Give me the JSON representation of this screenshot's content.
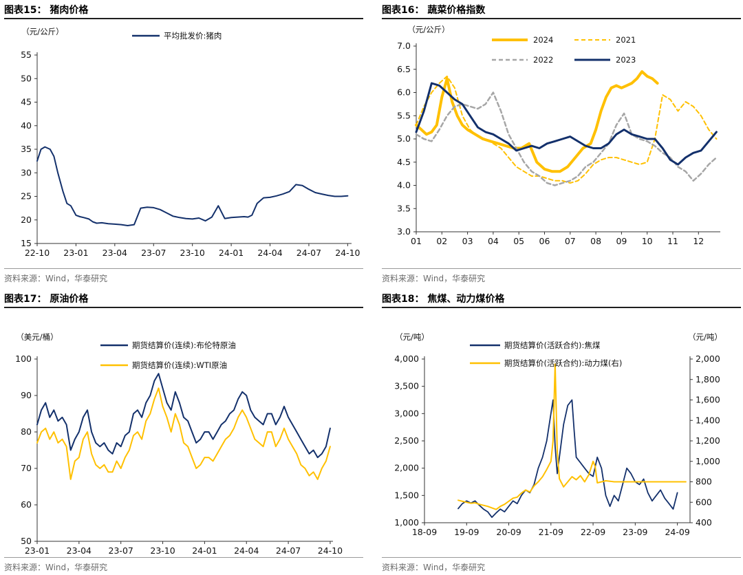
{
  "source_text": "资料来源：Wind，华泰研究",
  "colors": {
    "navy": "#13306b",
    "gold": "#ffc000",
    "gray": "#a6a6a6"
  },
  "chart_data": [
    {
      "id": "fig15",
      "panel_title": "图表15：  猪肉价格",
      "type": "line",
      "unit_left": "（元/公斤）",
      "ylim": [
        15,
        55
      ],
      "yticks": [
        "15",
        "20",
        "25",
        "30",
        "35",
        "40",
        "45",
        "50",
        "55"
      ],
      "xticks": [
        "22-10",
        "23-01",
        "23-04",
        "23-07",
        "23-10",
        "24-01",
        "24-04",
        "24-07",
        "24-10"
      ],
      "xrange": [
        0,
        24.3
      ],
      "series": [
        {
          "name": "平均批发价:猪肉",
          "color": "navy",
          "width": 2,
          "x": [
            0,
            0.3,
            0.6,
            1,
            1.3,
            1.6,
            2,
            2.3,
            2.6,
            3,
            3.3,
            3.6,
            4,
            4.3,
            4.6,
            5,
            5.5,
            6,
            6.5,
            7,
            7.5,
            8,
            8.5,
            9,
            9.5,
            10,
            10.5,
            11,
            11.5,
            12,
            12.5,
            13,
            13.5,
            14,
            14.5,
            15,
            15.5,
            16,
            16.3,
            16.6,
            17,
            17.5,
            18,
            18.5,
            19,
            19.5,
            20,
            20.5,
            21,
            21.5,
            22,
            22.5,
            23,
            23.5,
            24
          ],
          "y": [
            32.5,
            35,
            35.5,
            35,
            33.5,
            30,
            26,
            23.5,
            23,
            21,
            20.7,
            20.5,
            20.2,
            19.6,
            19.3,
            19.4,
            19.2,
            19.1,
            19,
            18.8,
            19,
            22.5,
            22.7,
            22.6,
            22.2,
            21.5,
            20.8,
            20.5,
            20.3,
            20.2,
            20.4,
            19.8,
            20.6,
            23,
            20.3,
            20.5,
            20.6,
            20.7,
            20.6,
            21,
            23.5,
            24.7,
            24.8,
            25.1,
            25.5,
            26,
            27.5,
            27.3,
            26.5,
            25.8,
            25.5,
            25.2,
            25,
            25,
            25.1
          ]
        }
      ]
    },
    {
      "id": "fig16",
      "panel_title": "图表16：  蔬菜价格指数",
      "type": "line",
      "unit_left": "（元/公斤）",
      "ylim": [
        3.0,
        7.0
      ],
      "yticks": [
        "3.0",
        "3.5",
        "4.0",
        "4.5",
        "5.0",
        "5.5",
        "6.0",
        "6.5",
        "7.0"
      ],
      "xticks": [
        "01",
        "02",
        "03",
        "04",
        "05",
        "06",
        "07",
        "08",
        "09",
        "10",
        "11",
        "12"
      ],
      "xrange": [
        1,
        12.85
      ],
      "series": [
        {
          "name": "2024",
          "color": "gold",
          "width": 4,
          "dash": "",
          "x": [
            1,
            1.2,
            1.4,
            1.6,
            1.8,
            2,
            2.2,
            2.4,
            2.6,
            2.8,
            3,
            3.3,
            3.6,
            3.9,
            4.2,
            4.5,
            4.8,
            5.1,
            5.4,
            5.7,
            6,
            6.3,
            6.6,
            6.9,
            7.2,
            7.5,
            7.8,
            8,
            8.2,
            8.4,
            8.6,
            8.8,
            9,
            9.2,
            9.4,
            9.6,
            9.8,
            10,
            10.2,
            10.4
          ],
          "y": [
            5.3,
            5.2,
            5.1,
            5.15,
            5.3,
            5.9,
            6.3,
            5.8,
            5.5,
            5.3,
            5.2,
            5.1,
            5.0,
            4.95,
            4.9,
            4.85,
            4.8,
            4.8,
            4.9,
            4.5,
            4.35,
            4.3,
            4.3,
            4.4,
            4.6,
            4.8,
            4.9,
            5.2,
            5.6,
            5.9,
            6.1,
            6.15,
            6.1,
            6.15,
            6.2,
            6.3,
            6.45,
            6.35,
            6.3,
            6.2
          ]
        },
        {
          "name": "2021",
          "color": "gold",
          "width": 2,
          "dash": "6 4",
          "x": [
            1,
            1.3,
            1.6,
            1.9,
            2.2,
            2.5,
            2.8,
            3.1,
            3.4,
            3.7,
            4,
            4.3,
            4.6,
            4.9,
            5.2,
            5.5,
            5.8,
            6.1,
            6.4,
            6.7,
            7,
            7.3,
            7.6,
            7.9,
            8.2,
            8.5,
            8.8,
            9.1,
            9.4,
            9.7,
            10,
            10.3,
            10.6,
            10.9,
            11.2,
            11.5,
            11.8,
            12.1,
            12.4,
            12.7
          ],
          "y": [
            5.3,
            5.7,
            6.0,
            6.2,
            6.35,
            6.1,
            5.5,
            5.2,
            5.05,
            5.0,
            4.9,
            4.8,
            4.6,
            4.4,
            4.3,
            4.2,
            4.2,
            4.15,
            4.1,
            4.1,
            4.05,
            4.1,
            4.25,
            4.45,
            4.55,
            4.6,
            4.6,
            4.55,
            4.5,
            4.45,
            4.5,
            5.0,
            5.95,
            5.85,
            5.6,
            5.8,
            5.7,
            5.5,
            5.2,
            5.0
          ]
        },
        {
          "name": "2022",
          "color": "gray",
          "width": 2.5,
          "dash": "6 4",
          "x": [
            1,
            1.3,
            1.6,
            1.9,
            2.2,
            2.5,
            2.8,
            3.1,
            3.4,
            3.7,
            4,
            4.3,
            4.6,
            4.9,
            5.2,
            5.5,
            5.8,
            6.1,
            6.4,
            6.7,
            7,
            7.3,
            7.6,
            7.9,
            8.2,
            8.5,
            8.8,
            9.1,
            9.4,
            9.7,
            10,
            10.3,
            10.6,
            10.9,
            11.2,
            11.5,
            11.8,
            12.1,
            12.4,
            12.7
          ],
          "y": [
            5.1,
            5.0,
            4.95,
            5.2,
            5.5,
            5.7,
            5.75,
            5.7,
            5.65,
            5.75,
            6.0,
            5.6,
            5.1,
            4.8,
            4.5,
            4.3,
            4.2,
            4.05,
            4.0,
            4.05,
            4.1,
            4.2,
            4.4,
            4.5,
            4.7,
            4.9,
            5.3,
            5.55,
            5.1,
            5.0,
            4.95,
            4.85,
            4.7,
            4.6,
            4.4,
            4.3,
            4.1,
            4.25,
            4.45,
            4.6
          ]
        },
        {
          "name": "2023",
          "color": "navy",
          "width": 3,
          "dash": "",
          "x": [
            1,
            1.3,
            1.6,
            1.9,
            2.2,
            2.5,
            2.8,
            3.1,
            3.4,
            3.7,
            4,
            4.3,
            4.6,
            4.9,
            5.2,
            5.5,
            5.8,
            6.1,
            6.4,
            6.7,
            7,
            7.3,
            7.6,
            7.9,
            8.2,
            8.5,
            8.8,
            9.1,
            9.4,
            9.7,
            10,
            10.3,
            10.6,
            10.9,
            11.2,
            11.5,
            11.8,
            12.1,
            12.4,
            12.7
          ],
          "y": [
            5.15,
            5.6,
            6.2,
            6.15,
            6.0,
            5.85,
            5.75,
            5.5,
            5.25,
            5.15,
            5.1,
            5.0,
            4.9,
            4.75,
            4.8,
            4.85,
            4.8,
            4.9,
            4.95,
            5.0,
            5.05,
            4.95,
            4.85,
            4.8,
            4.8,
            4.9,
            5.1,
            5.2,
            5.1,
            5.05,
            5.0,
            5.0,
            4.8,
            4.55,
            4.45,
            4.6,
            4.7,
            4.75,
            4.95,
            5.15
          ]
        }
      ]
    },
    {
      "id": "fig17",
      "panel_title": "图表17：  原油价格",
      "type": "line",
      "unit_left": "（美元/桶）",
      "ylim": [
        50,
        100
      ],
      "yticks": [
        "50",
        "60",
        "70",
        "80",
        "90",
        "100"
      ],
      "xticks": [
        "23-01",
        "23-04",
        "23-07",
        "23-10",
        "24-01",
        "24-04",
        "24-07",
        "24-10"
      ],
      "xrange": [
        0,
        21.2
      ],
      "series": [
        {
          "name": "期货结算价(连续):布伦特原油",
          "color": "navy",
          "width": 2,
          "x": [
            0,
            0.3,
            0.6,
            0.9,
            1.2,
            1.5,
            1.8,
            2.1,
            2.4,
            2.7,
            3,
            3.3,
            3.6,
            3.9,
            4.2,
            4.5,
            4.8,
            5.1,
            5.4,
            5.7,
            6,
            6.3,
            6.6,
            6.9,
            7.2,
            7.5,
            7.8,
            8.1,
            8.4,
            8.7,
            9,
            9.3,
            9.6,
            9.9,
            10.2,
            10.5,
            10.8,
            11.1,
            11.4,
            11.7,
            12,
            12.3,
            12.6,
            12.9,
            13.2,
            13.5,
            13.8,
            14.1,
            14.4,
            14.7,
            15,
            15.3,
            15.6,
            15.9,
            16.2,
            16.5,
            16.8,
            17.1,
            17.4,
            17.7,
            18,
            18.3,
            18.6,
            18.9,
            19.2,
            19.5,
            19.8,
            20.1,
            20.4,
            20.7,
            21
          ],
          "y": [
            82,
            86,
            88,
            84,
            86,
            83,
            84,
            82,
            75,
            78,
            80,
            84,
            86,
            80,
            77,
            76,
            77,
            75,
            74,
            77,
            76,
            79,
            80,
            85,
            86,
            84,
            88,
            90,
            94,
            96,
            92,
            88,
            86,
            91,
            88,
            84,
            83,
            80,
            77,
            78,
            80,
            80,
            78,
            80,
            82,
            83,
            85,
            86,
            89,
            91,
            90,
            86,
            84,
            83,
            82,
            85,
            85,
            82,
            84,
            87,
            84,
            82,
            80,
            78,
            76,
            74,
            75,
            73,
            74,
            76,
            81
          ]
        },
        {
          "name": "期货结算价(连续):WTI原油",
          "color": "gold",
          "width": 2,
          "x": [
            0,
            0.3,
            0.6,
            0.9,
            1.2,
            1.5,
            1.8,
            2.1,
            2.4,
            2.7,
            3,
            3.3,
            3.6,
            3.9,
            4.2,
            4.5,
            4.8,
            5.1,
            5.4,
            5.7,
            6,
            6.3,
            6.6,
            6.9,
            7.2,
            7.5,
            7.8,
            8.1,
            8.4,
            8.7,
            9,
            9.3,
            9.6,
            9.9,
            10.2,
            10.5,
            10.8,
            11.1,
            11.4,
            11.7,
            12,
            12.3,
            12.6,
            12.9,
            13.2,
            13.5,
            13.8,
            14.1,
            14.4,
            14.7,
            15,
            15.3,
            15.6,
            15.9,
            16.2,
            16.5,
            16.8,
            17.1,
            17.4,
            17.7,
            18,
            18.3,
            18.6,
            18.9,
            19.2,
            19.5,
            19.8,
            20.1,
            20.4,
            20.7,
            21
          ],
          "y": [
            77,
            80,
            81,
            78,
            80,
            77,
            78,
            76,
            67,
            72,
            73,
            78,
            80,
            74,
            71,
            70,
            71,
            69,
            69,
            72,
            70,
            73,
            75,
            79,
            80,
            78,
            83,
            85,
            89,
            92,
            87,
            84,
            80,
            85,
            82,
            77,
            76,
            73,
            70,
            71,
            73,
            73,
            72,
            74,
            76,
            78,
            79,
            81,
            84,
            86,
            84,
            81,
            78,
            77,
            76,
            80,
            80,
            76,
            78,
            81,
            78,
            76,
            74,
            71,
            70,
            68,
            69,
            67,
            70,
            72,
            76
          ]
        }
      ]
    },
    {
      "id": "fig18",
      "panel_title": "图表18：  焦煤、动力煤价格",
      "type": "line",
      "unit_left": "（元/吨）",
      "unit_right": "（元/吨）",
      "ylim": [
        1000,
        4000
      ],
      "ylim_right": [
        400,
        2000
      ],
      "yticks": [
        "1,000",
        "1,500",
        "2,000",
        "2,500",
        "3,000",
        "3,500",
        "4,000"
      ],
      "yticks_right": [
        "400",
        "600",
        "800",
        "1,000",
        "1,200",
        "1,400",
        "1,600",
        "1,800",
        "2,000"
      ],
      "xticks": [
        "18-09",
        "19-09",
        "20-09",
        "21-09",
        "22-09",
        "23-09",
        "24-09"
      ],
      "xrange": [
        0,
        6.3
      ],
      "series": [
        {
          "name": "期货结算价(活跃合约):焦煤",
          "color": "navy",
          "width": 1.8,
          "axis": "left",
          "x": [
            0.8,
            0.9,
            1.0,
            1.1,
            1.2,
            1.3,
            1.4,
            1.5,
            1.6,
            1.7,
            1.8,
            1.9,
            2.0,
            2.1,
            2.2,
            2.3,
            2.4,
            2.5,
            2.6,
            2.7,
            2.8,
            2.9,
            3.0,
            3.05,
            3.1,
            3.15,
            3.2,
            3.3,
            3.4,
            3.5,
            3.55,
            3.6,
            3.7,
            3.8,
            3.9,
            4.0,
            4.1,
            4.2,
            4.3,
            4.4,
            4.5,
            4.6,
            4.7,
            4.8,
            4.9,
            5.0,
            5.1,
            5.2,
            5.3,
            5.4,
            5.5,
            5.6,
            5.7,
            5.8,
            5.9,
            6.0
          ],
          "y": [
            1260,
            1350,
            1400,
            1360,
            1400,
            1320,
            1250,
            1200,
            1100,
            1180,
            1250,
            1200,
            1300,
            1400,
            1350,
            1500,
            1600,
            1550,
            1700,
            2000,
            2200,
            2500,
            3000,
            3250,
            2400,
            1900,
            2200,
            2800,
            3150,
            3250,
            2700,
            2200,
            2100,
            2000,
            1900,
            1850,
            2200,
            2000,
            1500,
            1300,
            1500,
            1400,
            1700,
            2000,
            1900,
            1750,
            1700,
            1800,
            1550,
            1400,
            1500,
            1600,
            1450,
            1350,
            1250,
            1550
          ]
        },
        {
          "name": "期货结算价(活跃合约):动力煤(右)",
          "color": "gold",
          "width": 2,
          "axis": "right",
          "x": [
            0.8,
            0.9,
            1.0,
            1.1,
            1.2,
            1.3,
            1.4,
            1.5,
            1.6,
            1.7,
            1.8,
            1.9,
            2.0,
            2.1,
            2.2,
            2.3,
            2.4,
            2.5,
            2.6,
            2.7,
            2.8,
            2.9,
            3.0,
            3.05,
            3.1,
            3.15,
            3.2,
            3.3,
            3.4,
            3.5,
            3.6,
            3.7,
            3.8,
            3.9,
            4.0,
            4.05,
            4.1,
            4.2,
            4.3,
            4.5,
            4.8,
            5.0,
            5.5,
            6.0,
            6.2
          ],
          "y": [
            620,
            610,
            600,
            590,
            595,
            580,
            570,
            560,
            545,
            530,
            560,
            580,
            610,
            640,
            650,
            690,
            720,
            700,
            760,
            800,
            850,
            920,
            1000,
            1200,
            1950,
            1100,
            830,
            750,
            800,
            850,
            820,
            860,
            800,
            870,
            1000,
            950,
            790,
            800,
            810,
            800,
            800,
            800,
            800,
            800,
            800
          ]
        }
      ]
    }
  ]
}
